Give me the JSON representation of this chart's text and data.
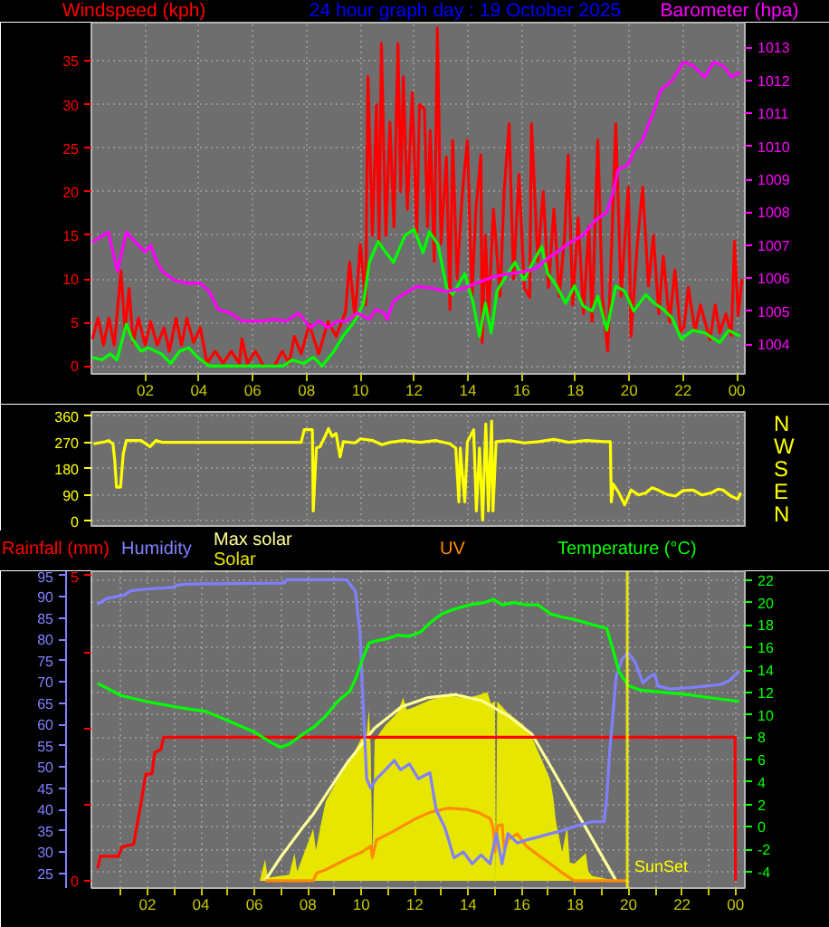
{
  "chart_data": [
    {
      "type": "line",
      "title": "24 hour graph day : 19 October 2025",
      "ylabel": "Windspeed (kph)",
      "y2label": "Barometer (hpa)",
      "xlim": [
        "2025-10-19T00:00",
        "2025-10-20T00:18"
      ],
      "xticks": [
        {
          "value": "2025-10-19T02:00",
          "label": "02"
        },
        {
          "value": "2025-10-19T04:00",
          "label": "04"
        },
        {
          "value": "2025-10-19T06:00",
          "label": "06"
        },
        {
          "value": "2025-10-19T08:00",
          "label": "08"
        },
        {
          "value": "2025-10-19T10:00",
          "label": "10"
        },
        {
          "value": "2025-10-19T12:00",
          "label": "12"
        },
        {
          "value": "2025-10-19T14:00",
          "label": "14"
        },
        {
          "value": "2025-10-19T16:00",
          "label": "16"
        },
        {
          "value": "2025-10-19T18:00",
          "label": "18"
        },
        {
          "value": "2025-10-19T20:00",
          "label": "20"
        },
        {
          "value": "2025-10-19T22:00",
          "label": "22"
        },
        {
          "value": "2025-10-20T00:00",
          "label": "00"
        }
      ],
      "ylim": [
        -0.9,
        39.4
      ],
      "yticks": [
        0,
        5,
        10,
        15,
        20,
        25,
        30,
        35
      ],
      "y2lim": [
        1003.1,
        1013.75
      ],
      "y2ticks": [
        1004,
        1005,
        1006,
        1007,
        1008,
        1009,
        1010,
        1011,
        1012,
        1013
      ],
      "grid": true,
      "series": [
        {
          "color": "#ff0000",
          "x": [
            "2025-10-19T00:02",
            "2025-10-19T00:15",
            "2025-10-19T00:27",
            "2025-10-19T00:39",
            "2025-10-19T00:51",
            "2025-10-19T01:06",
            "2025-10-19T01:15",
            "2025-10-19T01:24",
            "2025-10-19T01:33",
            "2025-10-19T01:45",
            "2025-10-19T02:00",
            "2025-10-19T02:12",
            "2025-10-19T02:27",
            "2025-10-19T02:42",
            "2025-10-19T02:54",
            "2025-10-19T03:09",
            "2025-10-19T03:21",
            "2025-10-19T03:33",
            "2025-10-19T03:48",
            "2025-10-19T04:03",
            "2025-10-19T04:18",
            "2025-10-19T04:36",
            "2025-10-19T04:54",
            "2025-10-19T05:12",
            "2025-10-19T05:30",
            "2025-10-19T05:36",
            "2025-10-19T05:48",
            "2025-10-19T06:06",
            "2025-10-19T06:24",
            "2025-10-19T06:48",
            "2025-10-19T07:06",
            "2025-10-19T07:21",
            "2025-10-19T07:33",
            "2025-10-19T07:48",
            "2025-10-19T08:06",
            "2025-10-19T08:27",
            "2025-10-19T08:48",
            "2025-10-19T09:06",
            "2025-10-19T09:27",
            "2025-10-19T09:36",
            "2025-10-19T09:48",
            "2025-10-19T10:00",
            "2025-10-19T10:12",
            "2025-10-19T10:17",
            "2025-10-19T10:27",
            "2025-10-19T10:36",
            "2025-10-19T10:42",
            "2025-10-19T10:47",
            "2025-10-19T10:57",
            "2025-10-19T11:06",
            "2025-10-19T11:15",
            "2025-10-19T11:24",
            "2025-10-19T11:30",
            "2025-10-19T11:36",
            "2025-10-19T11:45",
            "2025-10-19T11:56",
            "2025-10-19T12:06",
            "2025-10-19T12:12",
            "2025-10-19T12:23",
            "2025-10-19T12:30",
            "2025-10-19T12:36",
            "2025-10-19T12:45",
            "2025-10-19T12:52",
            "2025-10-19T13:00",
            "2025-10-19T13:12",
            "2025-10-19T13:20",
            "2025-10-19T13:26",
            "2025-10-19T13:36",
            "2025-10-19T13:48",
            "2025-10-19T13:59",
            "2025-10-19T14:09",
            "2025-10-19T14:18",
            "2025-10-19T14:29",
            "2025-10-19T14:32",
            "2025-10-19T14:39",
            "2025-10-19T14:46",
            "2025-10-19T14:57",
            "2025-10-19T15:12",
            "2025-10-19T15:21",
            "2025-10-19T15:32",
            "2025-10-19T15:42",
            "2025-10-19T15:54",
            "2025-10-19T16:06",
            "2025-10-19T16:18",
            "2025-10-19T16:22",
            "2025-10-19T16:36",
            "2025-10-19T16:48",
            "2025-10-19T17:00",
            "2025-10-19T17:12",
            "2025-10-19T17:24",
            "2025-10-19T17:36",
            "2025-10-19T17:44",
            "2025-10-19T17:54",
            "2025-10-19T18:06",
            "2025-10-19T18:18",
            "2025-10-19T18:30",
            "2025-10-19T18:37",
            "2025-10-19T18:50",
            "2025-10-19T19:00",
            "2025-10-19T19:12",
            "2025-10-19T19:21",
            "2025-10-19T19:30",
            "2025-10-19T19:42",
            "2025-10-19T19:58",
            "2025-10-19T20:04",
            "2025-10-19T20:18",
            "2025-10-19T20:30",
            "2025-10-19T20:43",
            "2025-10-19T20:54",
            "2025-10-19T21:06",
            "2025-10-19T21:16",
            "2025-10-19T21:30",
            "2025-10-19T21:42",
            "2025-10-19T21:54",
            "2025-10-19T22:02",
            "2025-10-19T22:12",
            "2025-10-19T22:27",
            "2025-10-19T22:39",
            "2025-10-19T22:49",
            "2025-10-19T23:00",
            "2025-10-19T23:12",
            "2025-10-19T23:22",
            "2025-10-19T23:36",
            "2025-10-19T23:48",
            "2025-10-19T23:55",
            "2025-10-20T00:03",
            "2025-10-20T00:12"
          ],
          "values": [
            3.1,
            5.5,
            2.4,
            5.5,
            2.4,
            10.9,
            4.0,
            8.9,
            2.7,
            5.5,
            2.4,
            5.1,
            2.4,
            4.4,
            1.7,
            5.5,
            2.4,
            5.5,
            2.7,
            4.4,
            0.3,
            1.7,
            0.3,
            1.7,
            0.3,
            3.1,
            0.3,
            1.7,
            0,
            0,
            1.7,
            0.3,
            3.4,
            1.4,
            4.8,
            1.4,
            5.1,
            3.4,
            6.2,
            11.9,
            5.5,
            14.0,
            7.0,
            33.2,
            15.0,
            30.0,
            14.0,
            37.0,
            15.0,
            28.0,
            16.0,
            37.0,
            20.0,
            33.2,
            18.0,
            31.4,
            15.0,
            30.0,
            29.5,
            16.0,
            27.0,
            12.0,
            38.8,
            14.0,
            24.0,
            6.5,
            25.9,
            10.0,
            20.0,
            25.9,
            8.0,
            18.0,
            24.2,
            2.7,
            15.0,
            5.5,
            18.0,
            8.0,
            20.0,
            27.8,
            10.0,
            22.0,
            9.0,
            7.9,
            27.8,
            12.0,
            20.0,
            9.0,
            18.0,
            8.0,
            15.0,
            24.2,
            7.0,
            17.0,
            6.0,
            16.0,
            5.1,
            25.9,
            8.0,
            1.7,
            14.0,
            27.8,
            8.0,
            20.5,
            3.4,
            14.0,
            20.5,
            9.2,
            15.0,
            6.0,
            12.6,
            5.0,
            11.0,
            4.0,
            4.4,
            9.0,
            4.0,
            7.0,
            5.1,
            3.0,
            7.0,
            3.8,
            6.0,
            3.5,
            14.3,
            5.8,
            10.0
          ]
        },
        {
          "color": "#00ff00",
          "x": [
            "2025-10-19T00:02",
            "2025-10-19T00:24",
            "2025-10-19T00:42",
            "2025-10-19T00:57",
            "2025-10-19T01:18",
            "2025-10-19T01:31",
            "2025-10-19T01:51",
            "2025-10-19T02:06",
            "2025-10-19T02:36",
            "2025-10-19T02:57",
            "2025-10-19T03:17",
            "2025-10-19T03:37",
            "2025-10-19T03:57",
            "2025-10-19T04:23",
            "2025-10-19T05:56",
            "2025-10-19T07:08",
            "2025-10-19T07:28",
            "2025-10-19T07:54",
            "2025-10-19T08:15",
            "2025-10-19T08:35",
            "2025-10-19T09:01",
            "2025-10-19T09:21",
            "2025-10-19T09:47",
            "2025-10-19T10:07",
            "2025-10-19T10:20",
            "2025-10-19T10:40",
            "2025-10-19T10:53",
            "2025-10-19T11:14",
            "2025-10-19T11:40",
            "2025-10-19T12:00",
            "2025-10-19T12:20",
            "2025-10-19T12:34",
            "2025-10-19T12:53",
            "2025-10-19T13:13",
            "2025-10-19T13:26",
            "2025-10-19T13:53",
            "2025-10-19T14:12",
            "2025-10-19T14:26",
            "2025-10-19T14:39",
            "2025-10-19T14:52",
            "2025-10-19T15:05",
            "2025-10-19T15:25",
            "2025-10-19T15:45",
            "2025-10-19T16:05",
            "2025-10-19T16:25",
            "2025-10-19T16:45",
            "2025-10-19T16:58",
            "2025-10-19T17:18",
            "2025-10-19T17:38",
            "2025-10-19T17:58",
            "2025-10-19T18:17",
            "2025-10-19T18:37",
            "2025-10-19T18:50",
            "2025-10-19T19:10",
            "2025-10-19T19:30",
            "2025-10-19T19:50",
            "2025-10-19T20:10",
            "2025-10-19T20:37",
            "2025-10-19T20:56",
            "2025-10-19T21:16",
            "2025-10-19T21:36",
            "2025-10-19T21:56",
            "2025-10-19T22:22",
            "2025-10-19T22:49",
            "2025-10-19T23:22",
            "2025-10-19T23:42",
            "2025-10-20T00:08"
          ],
          "values": [
            1.0,
            0.7,
            1.4,
            0.7,
            4.8,
            3.1,
            1.7,
            2.1,
            1.4,
            0.3,
            1.7,
            2.1,
            1.0,
            0,
            0,
            0,
            0.7,
            0.3,
            1.0,
            0,
            1.7,
            3.4,
            5.1,
            7.2,
            11.9,
            14.3,
            13.3,
            11.9,
            15.0,
            15.7,
            13.0,
            15.4,
            14.0,
            8.9,
            8.2,
            10.6,
            7.2,
            3.4,
            7.2,
            3.8,
            8.6,
            10.3,
            11.9,
            9.9,
            11.9,
            13.7,
            10.6,
            9.2,
            7.2,
            9.2,
            6.9,
            6.3,
            8.0,
            4.1,
            9.2,
            8.6,
            6.3,
            8.2,
            7.2,
            6.5,
            5.5,
            3.1,
            4.1,
            3.8,
            2.7,
            4.1,
            3.4
          ]
        },
        {
          "color": "#ff00ff",
          "axis": "y2",
          "x": [
            "2025-10-19T00:02",
            "2025-10-19T00:38",
            "2025-10-19T00:58",
            "2025-10-19T01:18",
            "2025-10-19T01:38",
            "2025-10-19T02:00",
            "2025-10-19T02:12",
            "2025-10-19T02:26",
            "2025-10-19T02:39",
            "2025-10-19T03:04",
            "2025-10-19T03:30",
            "2025-10-19T04:03",
            "2025-10-19T04:23",
            "2025-10-19T04:43",
            "2025-10-19T05:09",
            "2025-10-19T05:36",
            "2025-10-19T06:22",
            "2025-10-19T06:49",
            "2025-10-19T07:15",
            "2025-10-19T07:42",
            "2025-10-19T07:54",
            "2025-10-19T08:08",
            "2025-10-19T08:28",
            "2025-10-19T08:48",
            "2025-10-19T09:08",
            "2025-10-19T09:28",
            "2025-10-19T09:54",
            "2025-10-19T10:20",
            "2025-10-19T10:34",
            "2025-10-19T10:53",
            "2025-10-19T11:00",
            "2025-10-19T11:14",
            "2025-10-19T11:34",
            "2025-10-19T12:06",
            "2025-10-19T12:40",
            "2025-10-19T13:12",
            "2025-10-19T13:53",
            "2025-10-19T14:19",
            "2025-10-19T14:59",
            "2025-10-19T15:38",
            "2025-10-19T16:05",
            "2025-10-19T16:32",
            "2025-10-19T16:58",
            "2025-10-19T17:25",
            "2025-10-19T17:44",
            "2025-10-19T18:17",
            "2025-10-19T18:44",
            "2025-10-19T19:10",
            "2025-10-19T19:24",
            "2025-10-19T19:36",
            "2025-10-19T19:58",
            "2025-10-19T20:10",
            "2025-10-19T20:30",
            "2025-10-19T20:43",
            "2025-10-19T20:56",
            "2025-10-19T21:10",
            "2025-10-19T21:36",
            "2025-10-19T21:56",
            "2025-10-19T22:02",
            "2025-10-19T22:22",
            "2025-10-19T22:48",
            "2025-10-19T23:09",
            "2025-10-19T23:29",
            "2025-10-19T23:49",
            "2025-10-20T00:08"
          ],
          "values": [
            1007.1,
            1007.4,
            1006.2,
            1007.4,
            1007.1,
            1006.8,
            1007.0,
            1006.5,
            1006.2,
            1005.95,
            1005.85,
            1005.85,
            1005.6,
            1005.05,
            1004.95,
            1004.7,
            1004.7,
            1004.75,
            1004.7,
            1004.95,
            1004.75,
            1004.5,
            1004.7,
            1004.5,
            1004.7,
            1004.7,
            1004.95,
            1004.75,
            1005.05,
            1004.95,
            1004.75,
            1005.3,
            1005.5,
            1005.75,
            1005.7,
            1005.6,
            1005.7,
            1005.85,
            1006.05,
            1006.15,
            1006.2,
            1006.3,
            1006.6,
            1006.85,
            1007.05,
            1007.3,
            1007.75,
            1008.0,
            1008.6,
            1009.3,
            1009.45,
            1009.85,
            1010.2,
            1010.65,
            1011.1,
            1011.7,
            1012.0,
            1012.45,
            1012.55,
            1012.45,
            1012.1,
            1012.55,
            1012.45,
            1012.1,
            1012.25
          ]
        }
      ]
    },
    {
      "type": "line",
      "xlim": [
        "2025-10-19T00:00",
        "2025-10-20T00:18"
      ],
      "xticks": [
        {
          "value": "2025-10-19T02:00",
          "label": null
        },
        {
          "value": "2025-10-19T04:00",
          "label": null
        },
        {
          "value": "2025-10-19T06:00",
          "label": null
        },
        {
          "value": "2025-10-19T08:00",
          "label": null
        },
        {
          "value": "2025-10-19T10:00",
          "label": null
        },
        {
          "value": "2025-10-19T12:00",
          "label": null
        },
        {
          "value": "2025-10-19T14:00",
          "label": null
        },
        {
          "value": "2025-10-19T16:00",
          "label": null
        },
        {
          "value": "2025-10-19T18:00",
          "label": null
        },
        {
          "value": "2025-10-19T20:00",
          "label": null
        },
        {
          "value": "2025-10-19T22:00",
          "label": null
        },
        {
          "value": "2025-10-20T00:00",
          "label": null
        }
      ],
      "ylim": [
        -16,
        374
      ],
      "yticks": [
        0,
        90,
        180,
        270,
        360
      ],
      "y2_categories": [
        "N",
        "W",
        "S",
        "E",
        "N"
      ],
      "tick_labels": "y",
      "grid": true,
      "series": [
        {
          "color": "#ffff00",
          "x": [
            "2025-10-19T00:05",
            "2025-10-19T00:30",
            "2025-10-19T00:38",
            "2025-10-19T00:48",
            "2025-10-19T00:52",
            "2025-10-19T00:56",
            "2025-10-19T01:05",
            "2025-10-19T01:11",
            "2025-10-19T01:18",
            "2025-10-19T01:51",
            "2025-10-19T02:11",
            "2025-10-19T02:24",
            "2025-10-19T02:38",
            "2025-10-19T04:00",
            "2025-10-19T06:00",
            "2025-10-19T07:48",
            "2025-10-19T07:55",
            "2025-10-19T08:13",
            "2025-10-19T08:15",
            "2025-10-19T08:18",
            "2025-10-19T08:22",
            "2025-10-19T08:30",
            "2025-10-19T08:42",
            "2025-10-19T08:49",
            "2025-10-19T08:57",
            "2025-10-19T09:06",
            "2025-10-19T09:15",
            "2025-10-19T09:22",
            "2025-10-19T09:48",
            "2025-10-19T10:00",
            "2025-10-19T10:28",
            "2025-10-19T10:48",
            "2025-10-19T11:06",
            "2025-10-19T11:36",
            "2025-10-19T12:14",
            "2025-10-19T12:48",
            "2025-10-19T13:20",
            "2025-10-19T13:33",
            "2025-10-19T13:40",
            "2025-10-19T13:43",
            "2025-10-19T13:53",
            "2025-10-19T13:59",
            "2025-10-19T14:13",
            "2025-10-19T14:19",
            "2025-10-19T14:26",
            "2025-10-19T14:33",
            "2025-10-19T14:40",
            "2025-10-19T14:46",
            "2025-10-19T14:53",
            "2025-10-19T14:56",
            "2025-10-19T15:03",
            "2025-10-19T15:32",
            "2025-10-19T16:06",
            "2025-10-19T16:38",
            "2025-10-19T17:12",
            "2025-10-19T17:45",
            "2025-10-19T18:24",
            "2025-10-19T19:04",
            "2025-10-19T19:18",
            "2025-10-19T19:20",
            "2025-10-19T19:24",
            "2025-10-19T19:37",
            "2025-10-19T19:50",
            "2025-10-19T20:04",
            "2025-10-19T20:21",
            "2025-10-19T20:37",
            "2025-10-19T20:51",
            "2025-10-19T21:04",
            "2025-10-19T21:24",
            "2025-10-19T21:43",
            "2025-10-19T22:00",
            "2025-10-19T22:23",
            "2025-10-19T22:42",
            "2025-10-19T23:03",
            "2025-10-19T23:18",
            "2025-10-19T23:29",
            "2025-10-19T23:48",
            "2025-10-20T00:02",
            "2025-10-20T00:09"
          ],
          "values": [
            265,
            272,
            276,
            265,
            210,
            117,
            117,
            230,
            276,
            276,
            255,
            276,
            270,
            270,
            270,
            270,
            313,
            313,
            35,
            130,
            251,
            255,
            292,
            317,
            290,
            300,
            220,
            272,
            268,
            282,
            276,
            262,
            270,
            276,
            270,
            276,
            265,
            250,
            66,
            251,
            66,
            272,
            313,
            35,
            251,
            4,
            333,
            35,
            343,
            35,
            272,
            276,
            268,
            272,
            280,
            270,
            276,
            272,
            272,
            66,
            128,
            97,
            56,
            107,
            90,
            97,
            115,
            107,
            92,
            86,
            105,
            107,
            90,
            97,
            110,
            107,
            85,
            76,
            97
          ]
        }
      ]
    },
    {
      "type": "line",
      "ylabel": "Temperature (°C)",
      "y2label": "Rainfall (mm)",
      "y3label": "Humidity",
      "xlim": [
        "2025-10-18T23:54",
        "2025-10-20T00:21"
      ],
      "xticks": [
        {
          "value": "2025-10-19T01:00",
          "label": null
        },
        {
          "value": "2025-10-19T02:00",
          "label": "02"
        },
        {
          "value": "2025-10-19T03:00",
          "label": null
        },
        {
          "value": "2025-10-19T04:00",
          "label": "04"
        },
        {
          "value": "2025-10-19T05:00",
          "label": null
        },
        {
          "value": "2025-10-19T06:00",
          "label": "06"
        },
        {
          "value": "2025-10-19T07:00",
          "label": null
        },
        {
          "value": "2025-10-19T08:00",
          "label": "08"
        },
        {
          "value": "2025-10-19T09:00",
          "label": null
        },
        {
          "value": "2025-10-19T10:00",
          "label": "10"
        },
        {
          "value": "2025-10-19T11:00",
          "label": null
        },
        {
          "value": "2025-10-19T12:00",
          "label": "12"
        },
        {
          "value": "2025-10-19T13:00",
          "label": null
        },
        {
          "value": "2025-10-19T14:00",
          "label": "14"
        },
        {
          "value": "2025-10-19T15:00",
          "label": null
        },
        {
          "value": "2025-10-19T16:00",
          "label": "16"
        },
        {
          "value": "2025-10-19T17:00",
          "label": null
        },
        {
          "value": "2025-10-19T18:00",
          "label": "18"
        },
        {
          "value": "2025-10-19T19:00",
          "label": null
        },
        {
          "value": "2025-10-19T20:00",
          "label": "20"
        },
        {
          "value": "2025-10-19T21:00",
          "label": null
        },
        {
          "value": "2025-10-19T22:00",
          "label": "22"
        },
        {
          "value": "2025-10-19T23:00",
          "label": null
        },
        {
          "value": "2025-10-20T00:00",
          "label": "00"
        }
      ],
      "ylim": [
        -5.45,
        22.8
      ],
      "yticks": [
        -4,
        -2,
        0,
        2,
        4,
        6,
        8,
        10,
        12,
        14,
        16,
        18,
        20,
        22
      ],
      "y2lim": [
        -0.12,
        5.07
      ],
      "y2ticks": [
        0,
        {
          "value": 1.25,
          "label": null
        },
        {
          "value": 2.5,
          "label": null
        },
        {
          "value": 3.75,
          "label": null
        },
        5
      ],
      "y3lim": [
        21.5,
        96
      ],
      "y3ticks": [
        25,
        30,
        35,
        40,
        45,
        50,
        55,
        60,
        65,
        70,
        75,
        80,
        85,
        90,
        95
      ],
      "grid": true,
      "ref_lines": [
        {
          "axis": "x",
          "value": "2025-10-19T19:57",
          "label": "SunSet",
          "color": "#ffff00"
        }
      ],
      "series": [
        {
          "name": "Solar",
          "type": "area",
          "color": "#e6e600",
          "axis": "y2",
          "x": [
            "2025-10-19T00:00",
            "2025-10-19T06:12",
            "2025-10-19T06:24",
            "2025-10-19T06:30",
            "2025-10-19T07:18",
            "2025-10-19T07:30",
            "2025-10-19T07:36",
            "2025-10-19T08:12",
            "2025-10-19T08:18",
            "2025-10-19T08:30",
            "2025-10-19T08:40",
            "2025-10-19T09:07",
            "2025-10-19T09:34",
            "2025-10-19T10:01",
            "2025-10-19T10:12",
            "2025-10-19T10:17",
            "2025-10-19T10:21",
            "2025-10-19T10:25",
            "2025-10-19T10:30",
            "2025-10-19T10:54",
            "2025-10-19T11:21",
            "2025-10-19T11:34",
            "2025-10-19T11:42",
            "2025-10-19T12:00",
            "2025-10-19T12:34",
            "2025-10-19T13:15",
            "2025-10-19T13:55",
            "2025-10-19T14:22",
            "2025-10-19T14:43",
            "2025-10-19T14:51",
            "2025-10-19T15:00",
            "2025-10-19T15:02",
            "2025-10-19T15:05",
            "2025-10-19T15:29",
            "2025-10-19T16:04",
            "2025-10-19T16:23",
            "2025-10-19T16:44",
            "2025-10-19T17:04",
            "2025-10-19T17:11",
            "2025-10-19T17:17",
            "2025-10-19T17:31",
            "2025-10-19T17:42",
            "2025-10-19T17:48",
            "2025-10-19T17:58",
            "2025-10-19T18:24",
            "2025-10-19T18:30",
            "2025-10-19T18:38",
            "2025-10-19T19:32",
            "2025-10-20T00:00"
          ],
          "values": [
            0,
            0,
            0.35,
            0.05,
            0.1,
            0.45,
            0.15,
            0.85,
            0.5,
            0.95,
            1.3,
            1.66,
            1.96,
            2.35,
            2.4,
            2.8,
            2.2,
            0.3,
            2.3,
            2.55,
            2.75,
            3.0,
            2.8,
            2.85,
            2.96,
            3.04,
            2.99,
            3.04,
            3.09,
            2.9,
            2.94,
            0,
            2.94,
            2.75,
            2.55,
            2.35,
            2.0,
            1.66,
            1.36,
            0.97,
            0.47,
            0.9,
            0.3,
            0.28,
            0.45,
            0.15,
            0.08,
            0,
            0
          ]
        },
        {
          "name": "Max solar",
          "color": "#ffff99",
          "axis": "y2",
          "x": [
            "2025-10-19T06:24",
            "2025-10-19T07:00",
            "2025-10-19T07:46",
            "2025-10-19T08:13",
            "2025-10-19T08:40",
            "2025-10-19T09:30",
            "2025-10-19T10:30",
            "2025-10-19T11:30",
            "2025-10-19T12:30",
            "2025-10-19T13:30",
            "2025-10-19T14:30",
            "2025-10-19T15:30",
            "2025-10-19T16:23",
            "2025-10-19T17:11",
            "2025-10-19T18:00",
            "2025-10-19T18:38",
            "2025-10-19T19:32"
          ],
          "values": [
            0,
            0.4,
            0.85,
            1.1,
            1.4,
            1.95,
            2.5,
            2.85,
            3.0,
            3.05,
            2.95,
            2.7,
            2.4,
            1.8,
            1.17,
            0.69,
            0
          ]
        },
        {
          "name": "UV",
          "color": "#ff8c00",
          "axis": "y2",
          "x": [
            "2025-10-19T06:24",
            "2025-10-19T08:12",
            "2025-10-19T08:20",
            "2025-10-19T08:40",
            "2025-10-19T09:07",
            "2025-10-19T09:34",
            "2025-10-19T10:01",
            "2025-10-19T10:21",
            "2025-10-19T10:25",
            "2025-10-19T10:34",
            "2025-10-19T11:07",
            "2025-10-19T12:00",
            "2025-10-19T12:34",
            "2025-10-19T13:15",
            "2025-10-19T13:55",
            "2025-10-19T14:22",
            "2025-10-19T14:49",
            "2025-10-19T14:56",
            "2025-10-19T15:00",
            "2025-10-19T15:06",
            "2025-10-19T15:16",
            "2025-10-19T15:21",
            "2025-10-19T15:29",
            "2025-10-19T15:50",
            "2025-10-19T16:10",
            "2025-10-19T16:37",
            "2025-10-19T17:04",
            "2025-10-19T17:31",
            "2025-10-19T17:58",
            "2025-10-19T19:59"
          ],
          "values": [
            0,
            0,
            0.13,
            0.18,
            0.28,
            0.38,
            0.47,
            0.57,
            0.38,
            0.67,
            0.79,
            1.01,
            1.12,
            1.19,
            1.17,
            1.12,
            1.02,
            0.87,
            0.47,
            0.9,
            0.92,
            0.5,
            0.67,
            0.77,
            0.57,
            0.42,
            0.28,
            0.13,
            0,
            0
          ]
        },
        {
          "color": "#ff0000",
          "axis": "y2",
          "x": [
            "2025-10-19T00:08",
            "2025-10-19T00:14",
            "2025-10-19T00:55",
            "2025-10-19T01:02",
            "2025-10-19T01:29",
            "2025-10-19T01:36",
            "2025-10-19T01:45",
            "2025-10-19T01:56",
            "2025-10-19T02:10",
            "2025-10-19T02:16",
            "2025-10-19T02:30",
            "2025-10-19T02:36",
            "2025-10-19T02:50",
            "2025-10-19T23:59",
            "2025-10-20T00:00"
          ],
          "values": [
            0.2,
            0.4,
            0.4,
            0.55,
            0.6,
            0.9,
            1.25,
            1.75,
            1.75,
            2.1,
            2.15,
            2.35,
            2.35,
            2.35,
            0
          ]
        },
        {
          "color": "#8080ff",
          "axis": "y3",
          "x": [
            "2025-10-19T00:08",
            "2025-10-19T00:28",
            "2025-10-19T01:08",
            "2025-10-19T01:22",
            "2025-10-19T01:56",
            "2025-10-19T02:56",
            "2025-10-19T03:10",
            "2025-10-19T03:30",
            "2025-10-19T07:06",
            "2025-10-19T07:13",
            "2025-10-19T09:27",
            "2025-10-19T09:47",
            "2025-10-19T09:57",
            "2025-10-19T10:05",
            "2025-10-19T10:12",
            "2025-10-19T10:21",
            "2025-10-19T10:34",
            "2025-10-19T10:54",
            "2025-10-19T11:14",
            "2025-10-19T11:28",
            "2025-10-19T11:48",
            "2025-10-19T12:08",
            "2025-10-19T12:34",
            "2025-10-19T12:48",
            "2025-10-19T13:08",
            "2025-10-19T13:28",
            "2025-10-19T13:49",
            "2025-10-19T14:09",
            "2025-10-19T14:29",
            "2025-10-19T14:49",
            "2025-10-19T15:03",
            "2025-10-19T15:16",
            "2025-10-19T15:29",
            "2025-10-19T15:50",
            "2025-10-19T16:10",
            "2025-10-19T16:37",
            "2025-10-19T17:04",
            "2025-10-19T17:31",
            "2025-10-19T17:51",
            "2025-10-19T18:11",
            "2025-10-19T18:38",
            "2025-10-19T19:05",
            "2025-10-19T19:11",
            "2025-10-19T19:18",
            "2025-10-19T19:32",
            "2025-10-19T19:45",
            "2025-10-19T19:59",
            "2025-10-19T20:15",
            "2025-10-19T20:32",
            "2025-10-19T20:46",
            "2025-10-19T20:59",
            "2025-10-19T21:06",
            "2025-10-19T21:33",
            "2025-10-19T22:13",
            "2025-10-19T22:54",
            "2025-10-19T23:28",
            "2025-10-19T23:48",
            "2025-10-20T00:08"
          ],
          "values": [
            88.2,
            89.6,
            90.4,
            91.4,
            91.8,
            92.2,
            92.8,
            93.0,
            93.2,
            94.0,
            94.0,
            91.2,
            81.2,
            62.8,
            47.2,
            45.0,
            47.2,
            49.3,
            51.5,
            49.3,
            50.7,
            47.2,
            48.6,
            39.9,
            35.6,
            28.6,
            30.0,
            27.2,
            29.3,
            27.2,
            34.3,
            27.2,
            34.3,
            32.1,
            32.8,
            33.5,
            34.3,
            35.0,
            35.7,
            36.4,
            37.1,
            37.1,
            42.8,
            54.1,
            71.1,
            75.3,
            76.8,
            74.6,
            69.7,
            71.1,
            71.8,
            69.0,
            68.3,
            68.6,
            69.0,
            69.4,
            70.4,
            72.5
          ]
        },
        {
          "color": "#00ff00",
          "x": [
            "2025-10-19T00:08",
            "2025-10-19T01:02",
            "2025-10-19T01:56",
            "2025-10-19T03:17",
            "2025-10-19T04:11",
            "2025-10-19T05:05",
            "2025-10-19T05:58",
            "2025-10-19T06:39",
            "2025-10-19T06:59",
            "2025-10-19T07:19",
            "2025-10-19T07:46",
            "2025-10-19T08:13",
            "2025-10-19T08:40",
            "2025-10-19T09:07",
            "2025-10-19T09:34",
            "2025-10-19T09:47",
            "2025-10-19T10:01",
            "2025-10-19T10:17",
            "2025-10-19T10:34",
            "2025-10-19T11:01",
            "2025-10-19T11:21",
            "2025-10-19T11:48",
            "2025-10-19T12:14",
            "2025-10-19T12:34",
            "2025-10-19T13:01",
            "2025-10-19T13:28",
            "2025-10-19T14:02",
            "2025-10-19T14:36",
            "2025-10-19T14:56",
            "2025-10-19T15:16",
            "2025-10-19T15:43",
            "2025-10-19T16:10",
            "2025-10-19T16:37",
            "2025-10-19T17:04",
            "2025-10-19T17:31",
            "2025-10-19T17:58",
            "2025-10-19T18:25",
            "2025-10-19T18:52",
            "2025-10-19T19:11",
            "2025-10-19T19:25",
            "2025-10-19T19:38",
            "2025-10-19T19:59",
            "2025-10-19T20:26",
            "2025-10-19T21:20",
            "2025-10-19T22:13",
            "2025-10-19T23:07",
            "2025-10-20T00:08"
          ],
          "values": [
            12.8,
            11.7,
            11.2,
            10.6,
            10.3,
            9.4,
            8.5,
            7.5,
            7.1,
            7.4,
            8.2,
            8.9,
            9.9,
            11.2,
            12.1,
            13.2,
            14.8,
            16.4,
            16.6,
            16.8,
            17.1,
            17.0,
            17.4,
            18.2,
            19.0,
            19.4,
            19.8,
            20.0,
            20.3,
            19.8,
            20.0,
            19.8,
            19.8,
            19.0,
            18.7,
            18.5,
            18.2,
            17.9,
            17.7,
            15.8,
            13.9,
            12.6,
            12.2,
            12.0,
            11.8,
            11.5,
            11.2
          ]
        }
      ]
    }
  ]
}
